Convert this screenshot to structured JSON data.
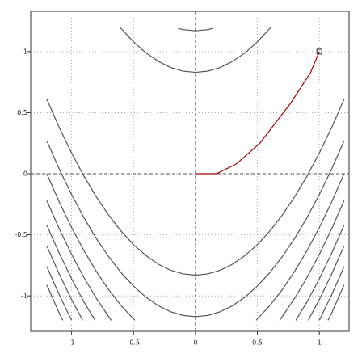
{
  "chart_data": {
    "type": "line",
    "xlim": [
      -1.33,
      1.24
    ],
    "ylim": [
      -1.29,
      1.33
    ],
    "xticks": [
      -1,
      -0.5,
      0,
      0.5,
      1
    ],
    "yticks": [
      -1,
      -0.5,
      0,
      0.5,
      1
    ],
    "grid": true,
    "series": [
      {
        "color": "#555555",
        "x": [
          -0.14,
          -0.1,
          0,
          0.1,
          0.14
        ],
        "values": [
          1.19,
          1.18,
          1.17,
          1.18,
          1.19
        ]
      },
      {
        "color": "#555555",
        "x": [
          -0.61,
          -0.5,
          -0.4,
          -0.3,
          -0.2,
          -0.1,
          0,
          0.1,
          0.2,
          0.3,
          0.4,
          0.5,
          0.61
        ],
        "values": [
          1.2,
          1.08,
          0.99,
          0.92,
          0.87,
          0.84,
          0.83,
          0.84,
          0.87,
          0.92,
          0.99,
          1.08,
          1.2
        ]
      },
      {
        "color": "#555555",
        "x": [
          -1.2,
          -1.1,
          -1.0,
          -0.9,
          -0.8,
          -0.7,
          -0.6,
          -0.5,
          -0.4,
          -0.3,
          -0.2,
          -0.1,
          0,
          0.1,
          0.2,
          0.3,
          0.4,
          0.5,
          0.6,
          0.7,
          0.8,
          0.9,
          1.0,
          1.1,
          1.2
        ],
        "values": [
          0.61,
          0.38,
          0.17,
          -0.02,
          -0.19,
          -0.34,
          -0.47,
          -0.58,
          -0.67,
          -0.74,
          -0.79,
          -0.82,
          -0.83,
          -0.82,
          -0.79,
          -0.74,
          -0.67,
          -0.58,
          -0.47,
          -0.34,
          -0.19,
          -0.02,
          0.17,
          0.38,
          0.61
        ]
      },
      {
        "color": "#555555",
        "x": [
          -1.2,
          -1.1,
          -1.0,
          -0.9,
          -0.8,
          -0.7,
          -0.6,
          -0.5,
          -0.4,
          -0.3,
          -0.2,
          -0.1,
          0,
          0.1,
          0.2,
          0.3,
          0.4,
          0.5,
          0.6,
          0.7,
          0.8,
          0.9,
          1.0,
          1.1,
          1.2
        ],
        "values": [
          0.27,
          0.04,
          -0.17,
          -0.36,
          -0.53,
          -0.68,
          -0.81,
          -0.92,
          -1.01,
          -1.08,
          -1.13,
          -1.16,
          -1.17,
          -1.16,
          -1.13,
          -1.08,
          -1.01,
          -0.92,
          -0.81,
          -0.68,
          -0.53,
          -0.36,
          -0.17,
          0.04,
          0.27
        ]
      },
      {
        "color": "#555555",
        "x": [
          -1.2,
          -1.1,
          -1.0,
          -0.9,
          -0.8,
          -0.7,
          -0.6,
          -0.49,
          0,
          0.49,
          0.6,
          0.7,
          0.8,
          0.9,
          1.0,
          1.1,
          1.2
        ],
        "values": [
          0.0,
          -0.23,
          -0.44,
          -0.63,
          -0.8,
          -0.95,
          -1.08,
          -1.2,
          null,
          -1.2,
          -1.08,
          -0.95,
          -0.8,
          -0.63,
          -0.44,
          -0.23,
          0.0
        ]
      },
      {
        "color": "#555555",
        "x": [
          -1.2,
          -1.1,
          -1.0,
          -0.9,
          -0.8,
          -0.68,
          0,
          0.68,
          0.8,
          0.9,
          1.0,
          1.1,
          1.2
        ],
        "values": [
          -0.22,
          -0.45,
          -0.66,
          -0.85,
          -1.02,
          -1.2,
          null,
          -1.2,
          -1.02,
          -0.85,
          -0.66,
          -0.45,
          -0.22
        ]
      },
      {
        "color": "#555555",
        "x": [
          -1.2,
          -1.1,
          -1.0,
          -0.9,
          -0.81,
          0,
          0.81,
          0.9,
          1.0,
          1.1,
          1.2
        ],
        "values": [
          -0.42,
          -0.65,
          -0.86,
          -1.05,
          -1.2,
          null,
          -1.2,
          -1.05,
          -0.86,
          -0.65,
          -0.42
        ]
      },
      {
        "color": "#555555",
        "x": [
          -1.2,
          -1.1,
          -1.0,
          -0.91,
          0,
          0.91,
          1.0,
          1.1,
          1.2
        ],
        "values": [
          -0.59,
          -0.82,
          -1.03,
          -1.2,
          null,
          -1.2,
          -1.03,
          -0.82,
          -0.59
        ]
      },
      {
        "color": "#555555",
        "x": [
          -1.2,
          -1.1,
          -1.0,
          0,
          1.0,
          1.1,
          1.2
        ],
        "values": [
          -0.76,
          -0.99,
          -1.2,
          null,
          -1.2,
          -0.99,
          -0.76
        ]
      },
      {
        "color": "#555555",
        "x": [
          -1.2,
          -1.1,
          -1.07,
          0,
          1.07,
          1.1,
          1.2
        ],
        "values": [
          -0.91,
          -1.14,
          -1.2,
          null,
          -1.2,
          -1.14,
          -0.91
        ]
      },
      {
        "color": "#a00000",
        "end_marker": "square",
        "x": [
          0,
          0.17,
          0.33,
          0.52,
          0.77,
          0.93,
          1.0
        ],
        "values": [
          0,
          0,
          0.08,
          0.25,
          0.58,
          0.83,
          1.0
        ]
      }
    ]
  }
}
